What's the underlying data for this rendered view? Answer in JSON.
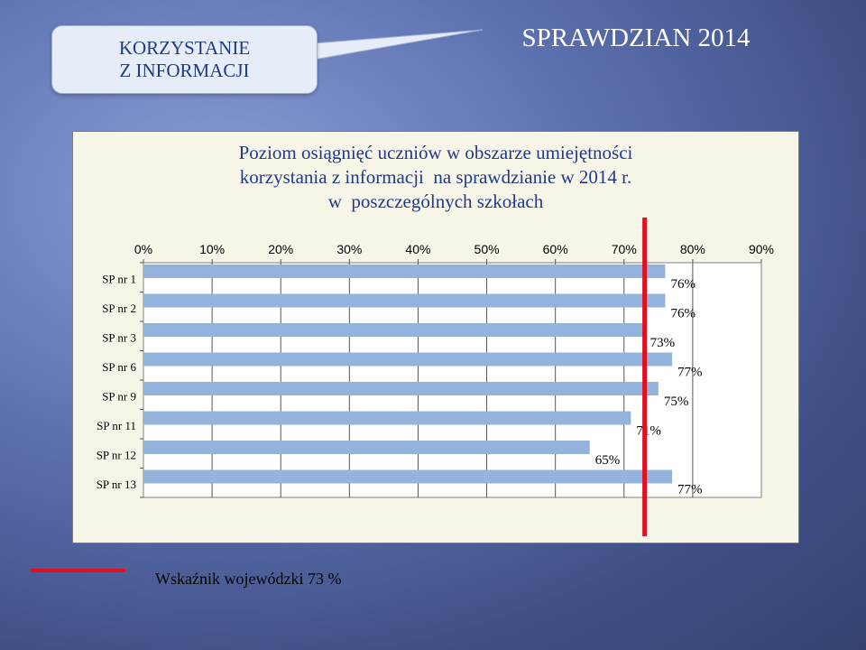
{
  "slide": {
    "callout_line1": "KORZYSTANIE",
    "callout_line2": "Z INFORMACJI",
    "title": "SPRAWDZIAN 2014",
    "legend_label": "Wskaźnik wojewódzki 73 %"
  },
  "chart_data": {
    "type": "bar",
    "orientation": "horizontal",
    "title_lines": [
      "Poziom osiągnięć uczniów w obszarze umiejętności",
      "korzystania z informacji  na sprawdzianie w 2014 r.",
      "w  poszczególnych szkołach"
    ],
    "categories": [
      "SP nr 1",
      "SP nr 2",
      "SP nr 3",
      "SP nr 6",
      "SP nr 9",
      "SP nr 11",
      "SP nr 12",
      "SP nr 13"
    ],
    "values": [
      76,
      76,
      73,
      77,
      75,
      71,
      65,
      77
    ],
    "data_labels": [
      "76%",
      "76%",
      "73%",
      "77%",
      "75%",
      "71%",
      "65%",
      "77%"
    ],
    "xlim": [
      0,
      90
    ],
    "x_ticks": [
      0,
      10,
      20,
      30,
      40,
      50,
      60,
      70,
      80,
      90
    ],
    "x_tick_labels": [
      "0%",
      "10%",
      "20%",
      "30%",
      "40%",
      "50%",
      "60%",
      "70%",
      "80%",
      "90%"
    ],
    "x_axis_position": "top",
    "reference_line": {
      "value": 73,
      "color": "#e0101e"
    },
    "bar_color": "#93b3dd",
    "grid": true
  }
}
